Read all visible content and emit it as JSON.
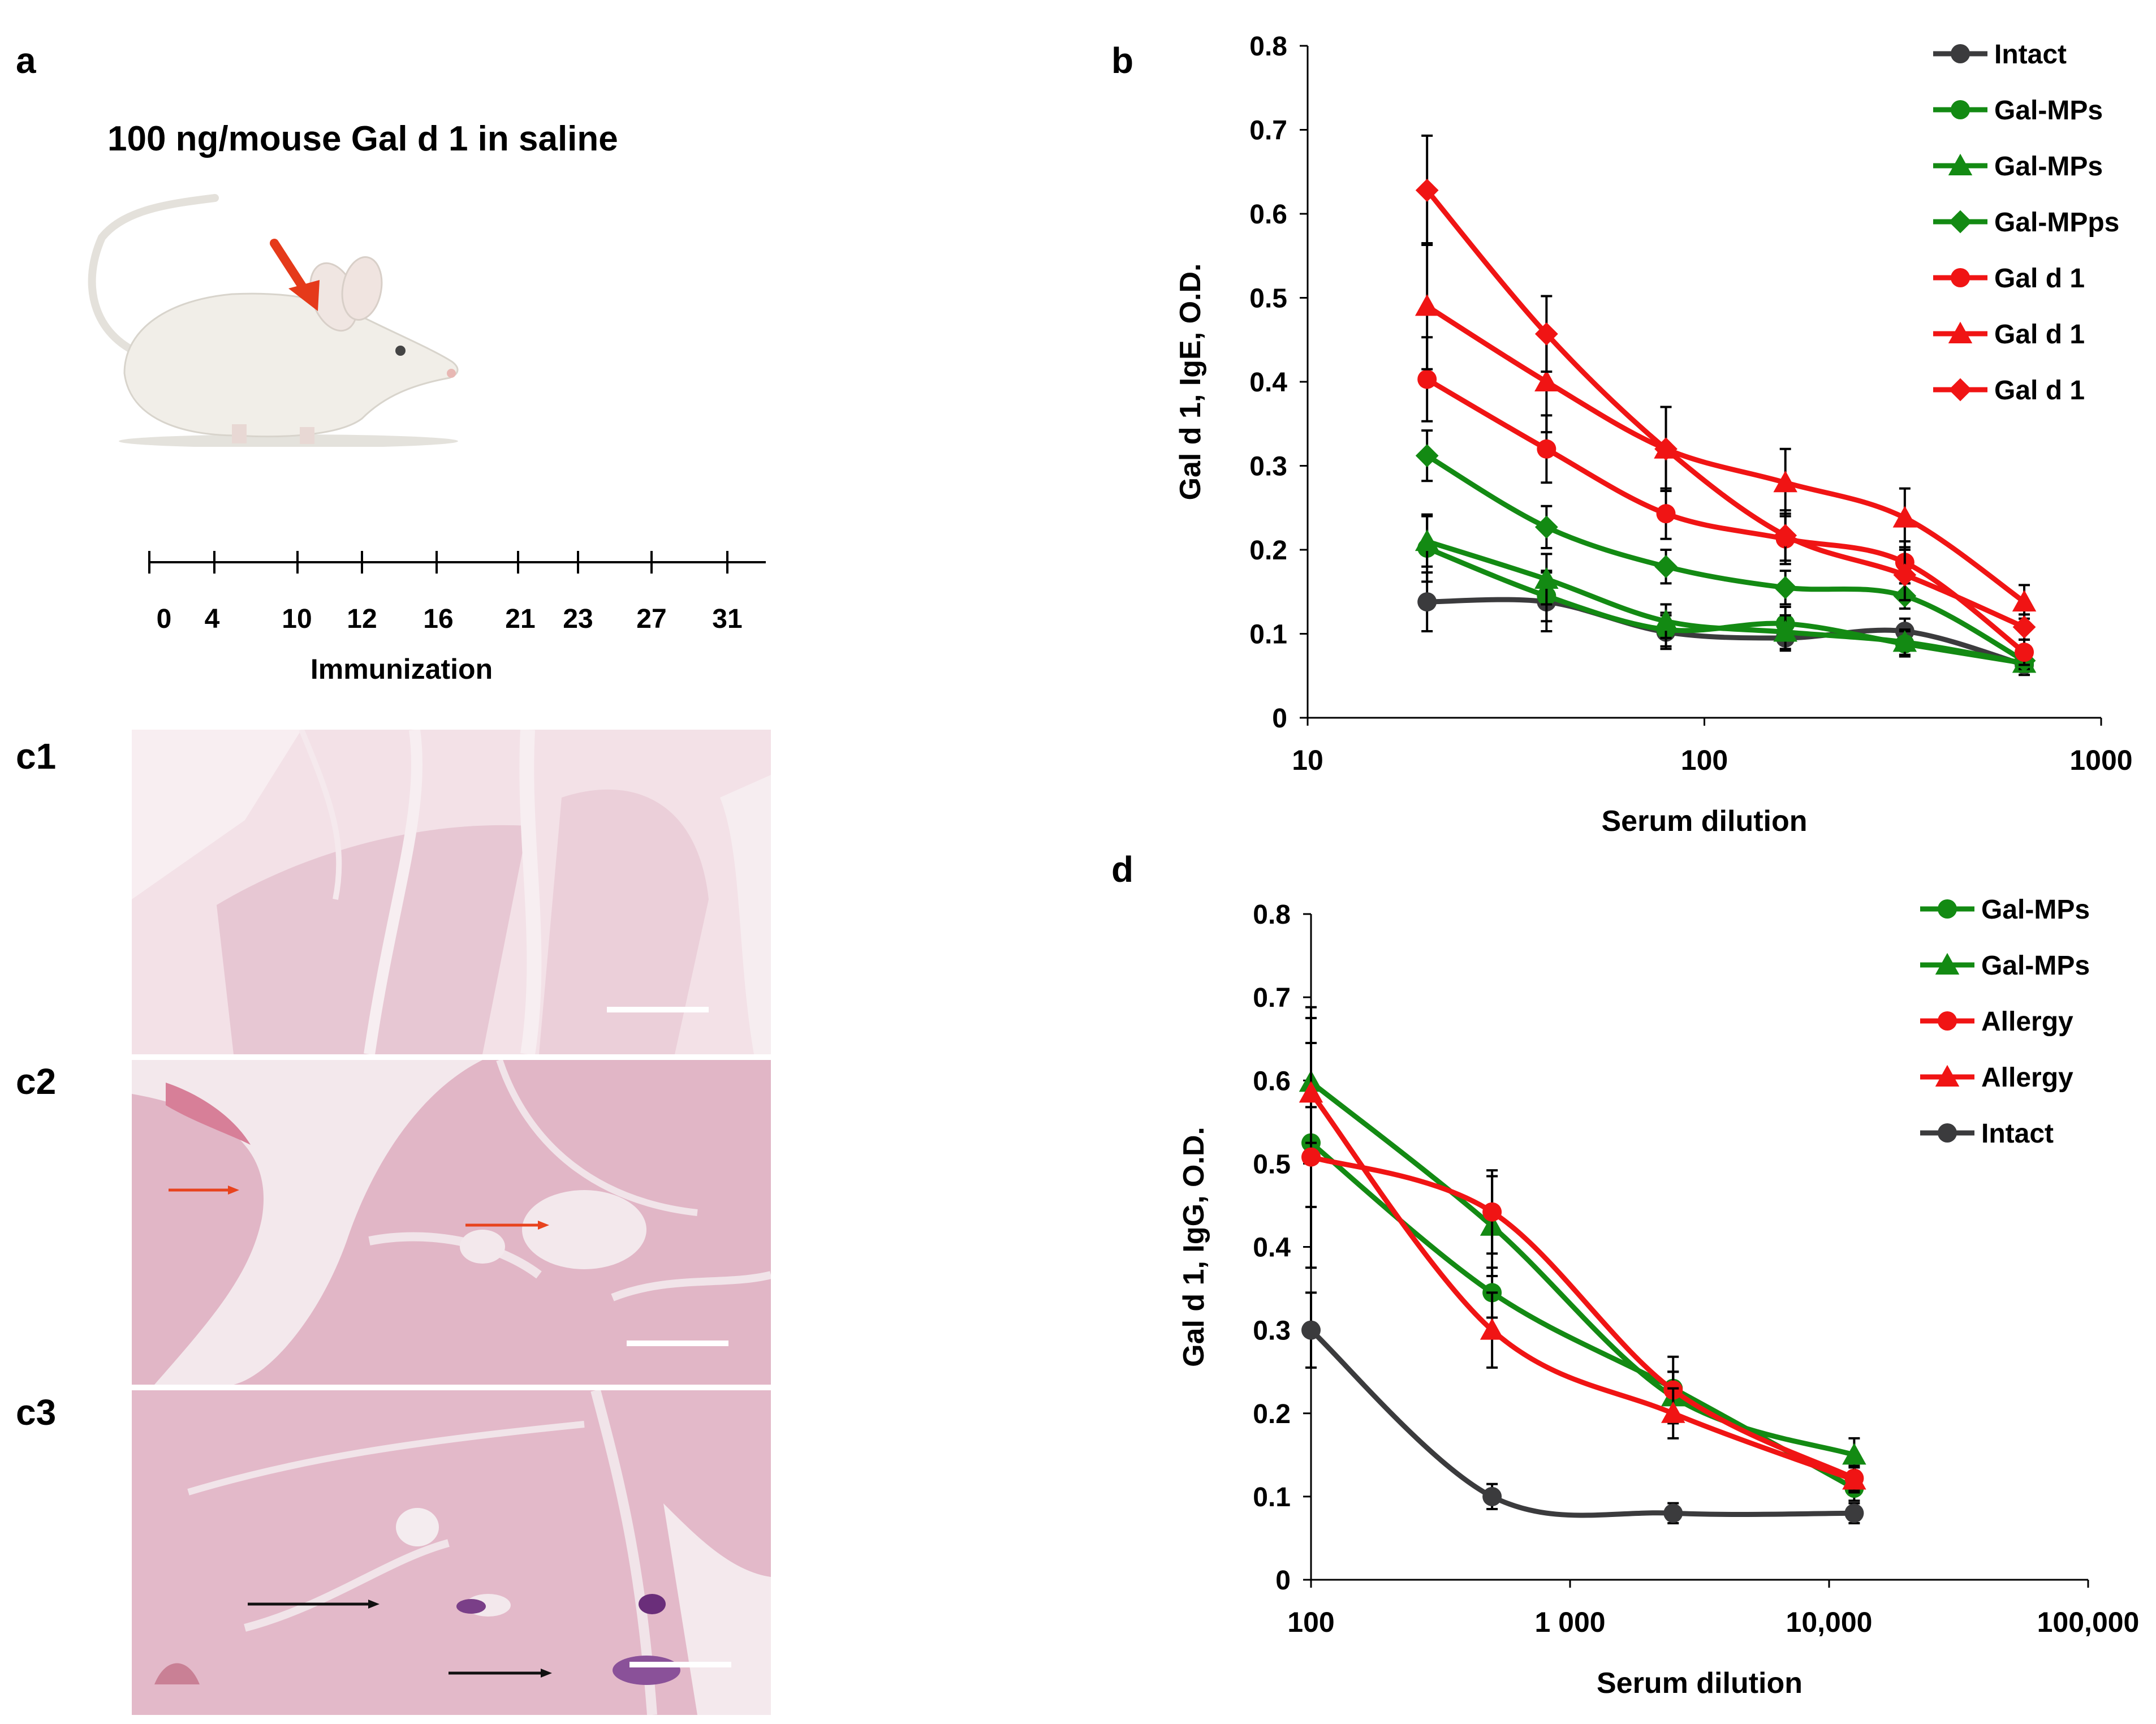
{
  "panels": {
    "a": {
      "label": "a",
      "title": "100 ng/mouse Gal d 1 in saline",
      "timeline_ticks": [
        "0",
        "4",
        "10",
        "12",
        "16",
        "21",
        "23",
        "27",
        "31"
      ],
      "timeline_label": "Immunization",
      "colors": {
        "arrow": "#e53a1a",
        "mouse_body": "#f1eee8"
      }
    },
    "c": {
      "labels": [
        "c1",
        "c2",
        "c3"
      ],
      "colors": {
        "tissue": "#e3bccb",
        "vessel": "#f2e6ea",
        "red_arrow": "#e8431e",
        "black_arrow": "#111111",
        "scale_bar": "#ffffff"
      }
    }
  },
  "chart_data": [
    {
      "panel": "b",
      "type": "line",
      "xscale": "log",
      "xlim": [
        10,
        1000
      ],
      "ylim": [
        0,
        0.8
      ],
      "xticks": [
        "10",
        "100",
        "1000"
      ],
      "yticks": [
        "0",
        "0.1",
        "0.2",
        "0.3",
        "0.4",
        "0.5",
        "0.6",
        "0.7",
        "0.8"
      ],
      "xlabel": "Serum dilution",
      "ylabel": "Gal d 1, IgE, O.D.",
      "legend_position": "top-right",
      "x": [
        20,
        40,
        80,
        160,
        320,
        640
      ],
      "series": [
        {
          "name": "Intact",
          "marker": "circle",
          "color": "#3b3b3d",
          "values": [
            0.138,
            0.138,
            0.102,
            0.095,
            0.103,
            0.063
          ],
          "err": [
            0.035,
            0.035,
            0.02,
            0.015,
            0.015,
            0.012
          ]
        },
        {
          "name": "Gal-MPs",
          "marker": "circle",
          "color": "#138a13",
          "values": [
            0.202,
            0.145,
            0.105,
            0.112,
            0.088,
            0.065
          ],
          "err": [
            0.04,
            0.03,
            0.02,
            0.02,
            0.015,
            0.01
          ]
        },
        {
          "name": "Gal-MPs",
          "marker": "triangle",
          "color": "#138a13",
          "values": [
            0.21,
            0.165,
            0.115,
            0.102,
            0.09,
            0.065
          ],
          "err": [
            0.03,
            0.03,
            0.02,
            0.02,
            0.015,
            0.01
          ]
        },
        {
          "name": "Gal-MPps",
          "marker": "diamond",
          "color": "#138a13",
          "values": [
            0.312,
            0.227,
            0.18,
            0.155,
            0.145,
            0.068
          ],
          "err": [
            0.03,
            0.025,
            0.02,
            0.02,
            0.015,
            0.01
          ]
        },
        {
          "name": "Gal d 1",
          "marker": "circle",
          "color": "#f01414",
          "values": [
            0.403,
            0.32,
            0.243,
            0.213,
            0.185,
            0.078
          ],
          "err": [
            0.05,
            0.04,
            0.03,
            0.03,
            0.025,
            0.015
          ]
        },
        {
          "name": "Gal d 1",
          "marker": "triangle",
          "color": "#f01414",
          "values": [
            0.49,
            0.4,
            0.32,
            0.28,
            0.238,
            0.138
          ],
          "err": [
            0.075,
            0.06,
            0.05,
            0.04,
            0.035,
            0.02
          ]
        },
        {
          "name": "Gal d 1",
          "marker": "diamond",
          "color": "#f01414",
          "values": [
            0.628,
            0.457,
            0.32,
            0.217,
            0.17,
            0.108
          ],
          "err": [
            0.065,
            0.045,
            0.05,
            0.03,
            0.03,
            0.015
          ]
        }
      ]
    },
    {
      "panel": "d",
      "type": "line",
      "xscale": "log",
      "xlim": [
        100,
        100000
      ],
      "ylim": [
        0,
        0.8
      ],
      "xticks": [
        "100",
        "1 000",
        "10,000",
        "100,000"
      ],
      "yticks": [
        "0",
        "0.1",
        "0.2",
        "0.3",
        "0.4",
        "0.5",
        "0.6",
        "0.7",
        "0.8"
      ],
      "xlabel": "Serum dilution",
      "ylabel": "Gal d 1, IgG, O.D.",
      "legend_position": "top-right",
      "x": [
        100,
        500,
        2500,
        12500
      ],
      "series": [
        {
          "name": "Gal-MPs",
          "marker": "circle",
          "color": "#138a13",
          "values": [
            0.525,
            0.345,
            0.23,
            0.11
          ],
          "err": [
            0.15,
            0.03,
            0.02,
            0.015
          ]
        },
        {
          "name": "Gal-MPs",
          "marker": "triangle",
          "color": "#138a13",
          "values": [
            0.598,
            0.425,
            0.22,
            0.15
          ],
          "err": [
            0.09,
            0.06,
            0.03,
            0.02
          ]
        },
        {
          "name": "Allergy",
          "marker": "circle",
          "color": "#f01414",
          "values": [
            0.508,
            0.442,
            0.228,
            0.122
          ],
          "err": [
            0.06,
            0.05,
            0.04,
            0.015
          ]
        },
        {
          "name": "Allergy",
          "marker": "triangle",
          "color": "#f01414",
          "values": [
            0.585,
            0.3,
            0.2,
            0.12
          ],
          "err": [
            0.06,
            0.045,
            0.03,
            0.015
          ]
        },
        {
          "name": "Intact",
          "marker": "circle",
          "color": "#3b3b3d",
          "values": [
            0.3,
            0.1,
            0.08,
            0.08
          ],
          "err": [
            0.045,
            0.015,
            0.012,
            0.012
          ]
        }
      ]
    }
  ]
}
